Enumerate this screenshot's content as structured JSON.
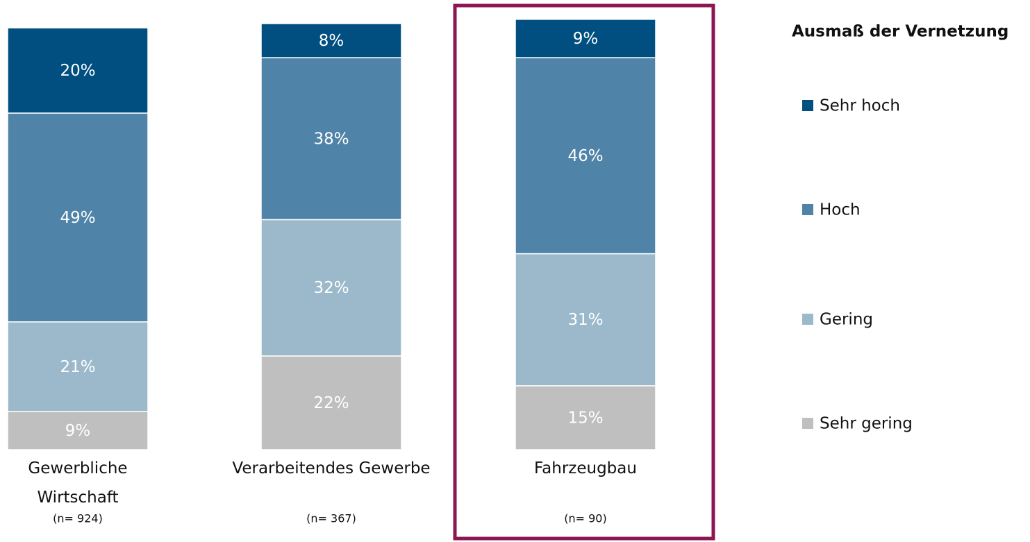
{
  "chart_data": {
    "type": "stacked_bar",
    "categories": [
      "Gewerbliche Wirtschaft",
      "Verarbeitendes Gewerbe",
      "Fahrzeugbau"
    ],
    "sample_sizes": [
      "(n= 924)",
      "(n= 367)",
      "(n= 90)"
    ],
    "legend_title": "Ausmaß der Vernetzung",
    "ylim": [
      0,
      100
    ],
    "series": [
      {
        "name": "Sehr gering",
        "color": "#bfbfbf",
        "values": [
          9,
          22,
          15
        ],
        "value_labels": [
          "9%",
          "22%",
          "15%"
        ]
      },
      {
        "name": "Gering",
        "color": "#9bb9cb",
        "values": [
          21,
          32,
          31
        ],
        "value_labels": [
          "21%",
          "32%",
          "31%"
        ]
      },
      {
        "name": "Hoch",
        "color": "#4f83a7",
        "values": [
          49,
          38,
          46
        ],
        "value_labels": [
          "49%",
          "38%",
          "46%"
        ]
      },
      {
        "name": "Sehr hoch",
        "color": "#004f80",
        "values": [
          20,
          8,
          9
        ],
        "value_labels": [
          "20%",
          "8%",
          "9%"
        ]
      }
    ]
  }
}
